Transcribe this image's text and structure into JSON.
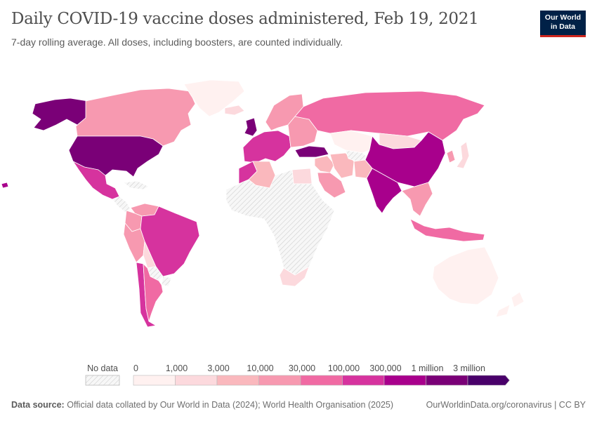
{
  "header": {
    "title": "Daily COVID-19 vaccine doses administered, Feb 19, 2021",
    "subtitle": "7-day rolling average. All doses, including boosters, are counted individually."
  },
  "logo": {
    "line1": "Our World",
    "line2": "in Data"
  },
  "legend": {
    "no_data_label": "No data",
    "bins": [
      {
        "label": "0",
        "color": "#fff1f0"
      },
      {
        "label": "1,000",
        "color": "#fcd9dd"
      },
      {
        "label": "3,000",
        "color": "#fab8bd"
      },
      {
        "label": "10,000",
        "color": "#f799b0"
      },
      {
        "label": "30,000",
        "color": "#f06aa3"
      },
      {
        "label": "100,000",
        "color": "#d6339e"
      },
      {
        "label": "300,000",
        "color": "#a8008c"
      },
      {
        "label": "1 million",
        "color": "#7a0077"
      },
      {
        "label": "3 million",
        "color": "#49006a"
      }
    ],
    "tick_labels": [
      "0",
      "1,000",
      "3,000",
      "10,000",
      "30,000",
      "100,000",
      "300,000",
      "1 million",
      "3 million"
    ]
  },
  "map": {
    "colors": {
      "no_data": "#f2f2f2",
      "border": "#ffffff",
      "ocean": "#ffffff"
    },
    "regions": [
      {
        "name": "alaska",
        "bin": 7
      },
      {
        "name": "canada",
        "bin": 3
      },
      {
        "name": "greenland",
        "bin": 0
      },
      {
        "name": "usa",
        "bin": 7
      },
      {
        "name": "mexico",
        "bin": 5
      },
      {
        "name": "central-america",
        "bin": -1
      },
      {
        "name": "caribbean",
        "bin": -1
      },
      {
        "name": "colombia",
        "bin": 3
      },
      {
        "name": "venezuela",
        "bin": 3
      },
      {
        "name": "peru",
        "bin": 3
      },
      {
        "name": "brazil",
        "bin": 5
      },
      {
        "name": "bolivia",
        "bin": 1
      },
      {
        "name": "paraguay",
        "bin": -1
      },
      {
        "name": "chile",
        "bin": 5
      },
      {
        "name": "argentina",
        "bin": 4
      },
      {
        "name": "uruguay",
        "bin": -1
      },
      {
        "name": "iceland",
        "bin": 1
      },
      {
        "name": "uk",
        "bin": 7
      },
      {
        "name": "western-europe",
        "bin": 5
      },
      {
        "name": "scandinavia",
        "bin": 3
      },
      {
        "name": "eastern-europe",
        "bin": 3
      },
      {
        "name": "russia",
        "bin": 4
      },
      {
        "name": "turkey",
        "bin": 7
      },
      {
        "name": "middle-east",
        "bin": 2
      },
      {
        "name": "saudi-arabia",
        "bin": 3
      },
      {
        "name": "iran",
        "bin": 2
      },
      {
        "name": "kazakhstan",
        "bin": 0
      },
      {
        "name": "central-asia",
        "bin": -1
      },
      {
        "name": "mongolia",
        "bin": 1
      },
      {
        "name": "china",
        "bin": 6
      },
      {
        "name": "india",
        "bin": 6
      },
      {
        "name": "pakistan",
        "bin": 2
      },
      {
        "name": "southeast-asia",
        "bin": 3
      },
      {
        "name": "indonesia",
        "bin": 4
      },
      {
        "name": "japan",
        "bin": 1
      },
      {
        "name": "korea",
        "bin": 3
      },
      {
        "name": "morocco",
        "bin": 5
      },
      {
        "name": "algeria",
        "bin": 2
      },
      {
        "name": "egypt",
        "bin": 1
      },
      {
        "name": "sub-saharan-africa",
        "bin": -1
      },
      {
        "name": "south-africa",
        "bin": 1
      },
      {
        "name": "australia",
        "bin": 0
      },
      {
        "name": "new-zealand",
        "bin": 0
      },
      {
        "name": "hawaii",
        "bin": 6
      }
    ]
  },
  "footer": {
    "source_label": "Data source:",
    "source_text": "Official data collated by Our World in Data (2024); World Health Organisation (2025)",
    "link_text": "OurWorldinData.org/coronavirus | CC BY"
  }
}
